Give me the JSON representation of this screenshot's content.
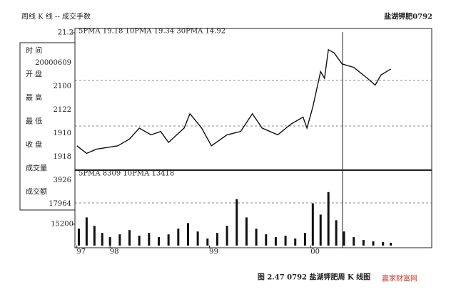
{
  "header": {
    "left": "周线  K 线 -- 成交手数",
    "title": "盐湖钾肥0792"
  },
  "panel": {
    "items": [
      "时 间",
      "20000609",
      "开 盘",
      "2100",
      "最 高",
      "2122",
      "最 低",
      "1910",
      "收 盘",
      "1918",
      "成交量",
      "3926",
      "成交额",
      "17964"
    ]
  },
  "chart_data": [
    {
      "type": "line",
      "legend_text": "5PMA 19.18 10PMA 19.34 30PMA 14.92",
      "x": [
        -17,
        -12,
        -7,
        4,
        10,
        15,
        21,
        26,
        30,
        38,
        41,
        47,
        52,
        60,
        67,
        73,
        78,
        86,
        93,
        99,
        101,
        104,
        108,
        110,
        112,
        115,
        119,
        125,
        132,
        136,
        139,
        144
      ],
      "series": [
        {
          "name": "K线",
          "color": "#111111",
          "values": [
            7.8,
            6.9,
            7.4,
            7.8,
            8.6,
            9.9,
            9.1,
            9.5,
            8.2,
            9.9,
            11.6,
            9.9,
            7.8,
            9.1,
            9.5,
            11.6,
            9.9,
            9.1,
            10.4,
            11.2,
            9.9,
            12.4,
            16.6,
            15.8,
            19.2,
            18.8,
            17.5,
            17.1,
            15.8,
            15.0,
            16.2,
            16.9
          ]
        }
      ],
      "xlim": [
        -18,
        165
      ],
      "ylim": [
        5,
        21.2
      ],
      "yticks": [
        21.2
      ],
      "xticks": [
        {
          "value": -17,
          "label": "97"
        },
        {
          "value": 0,
          "label": "98"
        },
        {
          "value": 51,
          "label": "99"
        },
        {
          "value": 103,
          "label": "00"
        }
      ]
    },
    {
      "type": "bar",
      "legend_text": "5PMA 8309 10PMA 13418",
      "x": [
        -16,
        -12,
        -8,
        -4,
        0,
        5,
        10,
        15,
        20,
        25,
        30,
        35,
        40,
        45,
        50,
        55,
        60,
        65,
        70,
        75,
        80,
        85,
        90,
        95,
        100,
        104,
        108,
        112,
        116,
        120,
        125,
        130,
        135,
        140,
        144
      ],
      "values": [
        12000,
        20000,
        14000,
        9000,
        6000,
        8000,
        11000,
        7000,
        9000,
        6000,
        8000,
        12000,
        16000,
        10000,
        5000,
        9000,
        14000,
        33000,
        20000,
        12000,
        8000,
        6000,
        7000,
        5000,
        9000,
        30000,
        22000,
        38000,
        18000,
        10000,
        6000,
        4000,
        3000,
        2500,
        2000
      ],
      "color": "#111111",
      "xlim": [
        -18,
        165
      ],
      "ylim": [
        0,
        48000
      ],
      "yticks": [
        15200
      ]
    }
  ],
  "caption": "图 2.47    0792 盐湖钾肥周 K 线图",
  "watermark": "赢家财富网"
}
